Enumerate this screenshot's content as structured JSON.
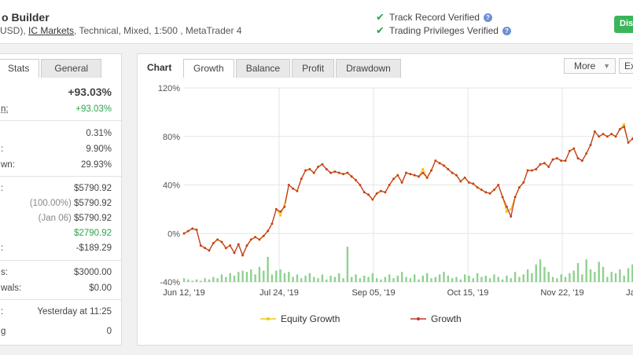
{
  "header": {
    "system_name": "o Builder",
    "sub_prefix": "USD), ",
    "broker_link": "IC Markets",
    "sub_suffix": ", Technical, Mixed, 1:500 , MetaTrader 4",
    "verif_track": "Track Record Verified",
    "verif_trading": "Trading Privileges Verified",
    "dis_button": "Dis"
  },
  "left": {
    "tabs": [
      "Stats",
      "General"
    ],
    "rows": {
      "gain_big": "+93.03%",
      "abs_label": "n:",
      "abs_val": "+93.03%",
      "daily_val": "0.31%",
      "monthly_label": ":",
      "monthly_val": "9.90%",
      "dd_label": "wn:",
      "dd_val": "29.93%",
      "bal_label": ":",
      "bal_val": "$5790.92",
      "eq_pct": "(100.00%)",
      "eq_val": "$5790.92",
      "high_date": "(Jan 06)",
      "high_val": "$5790.92",
      "profit_val": "$2790.92",
      "interest_label": ":",
      "interest_val": "-$189.29",
      "dep_label": "s:",
      "dep_val": "$3000.00",
      "wd_label": "wals:",
      "wd_val": "$0.00",
      "upd_label": ":",
      "upd_val": "Yesterday at 11:25",
      "track_label": "g",
      "track_val": "0"
    }
  },
  "chart_panel": {
    "title": "Chart",
    "tabs": [
      "Growth",
      "Balance",
      "Profit",
      "Drawdown"
    ],
    "more": "More",
    "export": "Ex",
    "legend_equity": "Equity Growth",
    "legend_growth": "Growth"
  },
  "chart_data": {
    "type": "line",
    "x_tick_labels": [
      "Jun 12, '19",
      "Jul 24, '19",
      "Sep 05, '19",
      "Oct 15, '19",
      "Nov 22, '19",
      "Jan"
    ],
    "y_tick_labels": [
      "120%",
      "80%",
      "40%",
      "0%",
      "-40%"
    ],
    "ylim": [
      -40,
      120
    ],
    "grid": true,
    "colors": {
      "growth": "#c0392b",
      "equity": "#f5c518",
      "volume": "#8fd18f"
    },
    "series": [
      {
        "name": "Growth",
        "values": [
          0,
          2,
          4,
          3,
          -10,
          -12,
          -14,
          -8,
          -5,
          -7,
          -12,
          -10,
          -16,
          -9,
          -18,
          -10,
          -5,
          -3,
          -5,
          -2,
          2,
          8,
          20,
          18,
          22,
          40,
          37,
          35,
          45,
          52,
          53,
          50,
          55,
          57,
          53,
          50,
          51,
          50,
          49,
          50,
          47,
          44,
          40,
          34,
          32,
          28,
          33,
          35,
          34,
          40,
          45,
          48,
          42,
          50,
          49,
          48,
          47,
          50,
          46,
          52,
          60,
          58,
          56,
          53,
          50,
          48,
          43,
          46,
          42,
          41,
          38,
          36,
          34,
          33,
          36,
          40,
          30,
          22,
          14,
          30,
          38,
          42,
          52,
          52,
          53,
          57,
          58,
          55,
          61,
          62,
          60,
          60,
          68,
          70,
          62,
          60,
          66,
          73,
          84,
          80,
          82,
          80,
          82,
          80,
          86,
          88,
          75,
          78,
          85,
          88
        ]
      },
      {
        "name": "Equity Growth",
        "values": [
          0,
          2,
          4,
          3,
          -10,
          -12,
          -14,
          -8,
          -5,
          -7,
          -12,
          -10,
          -16,
          -9,
          -18,
          -10,
          -5,
          -3,
          -5,
          -2,
          2,
          8,
          20,
          15,
          24,
          40,
          37,
          35,
          45,
          52,
          53,
          50,
          55,
          57,
          53,
          50,
          51,
          50,
          49,
          50,
          47,
          44,
          40,
          34,
          32,
          28,
          33,
          35,
          34,
          40,
          45,
          48,
          42,
          50,
          49,
          48,
          47,
          53,
          46,
          52,
          60,
          58,
          56,
          53,
          50,
          48,
          43,
          46,
          42,
          41,
          38,
          36,
          34,
          33,
          36,
          40,
          30,
          18,
          20,
          30,
          38,
          42,
          52,
          52,
          53,
          57,
          58,
          55,
          61,
          62,
          60,
          60,
          68,
          70,
          62,
          60,
          66,
          73,
          84,
          80,
          82,
          80,
          82,
          80,
          86,
          90,
          75,
          78,
          85,
          88
        ]
      },
      {
        "name": "Volume",
        "values": [
          3,
          2,
          1,
          2,
          1,
          3,
          2,
          4,
          3,
          6,
          4,
          7,
          5,
          8,
          9,
          8,
          10,
          6,
          12,
          9,
          20,
          6,
          9,
          10,
          7,
          8,
          4,
          6,
          3,
          5,
          7,
          4,
          3,
          6,
          2,
          5,
          4,
          7,
          3,
          28,
          4,
          6,
          3,
          5,
          4,
          7,
          3,
          2,
          4,
          6,
          3,
          5,
          8,
          4,
          3,
          6,
          2,
          5,
          7,
          3,
          4,
          6,
          8,
          5,
          3,
          4,
          2,
          6,
          5,
          3,
          7,
          4,
          5,
          3,
          6,
          4,
          2,
          5,
          3,
          8,
          4,
          6,
          10,
          7,
          14,
          18,
          12,
          8,
          4,
          3,
          6,
          4,
          7,
          9,
          15,
          6,
          18,
          10,
          8,
          16,
          12,
          4,
          8,
          7,
          10,
          5,
          11,
          14,
          8,
          9
        ]
      }
    ]
  }
}
